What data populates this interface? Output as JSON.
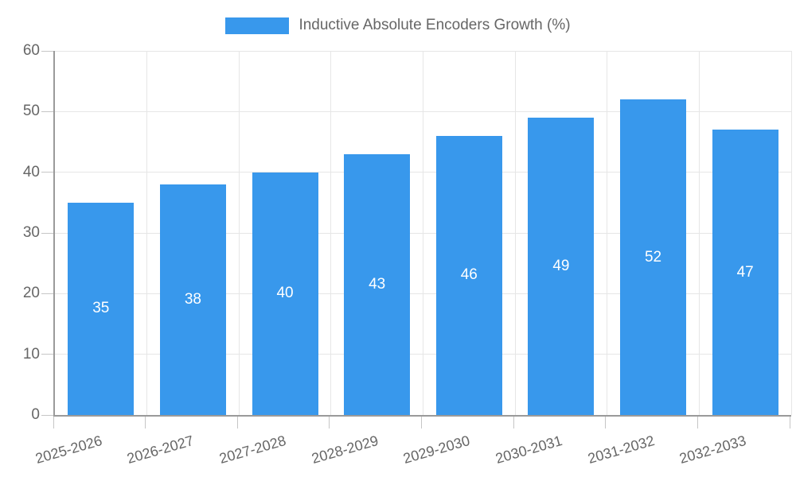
{
  "chart_data": {
    "type": "bar",
    "title": "",
    "legend": "Inductive Absolute Encoders Growth (%)",
    "legend_position": "top-center",
    "categories": [
      "2025-2026",
      "2026-2027",
      "2027-2028",
      "2028-2029",
      "2029-2030",
      "2030-2031",
      "2031-2032",
      "2032-2033"
    ],
    "values": [
      35,
      38,
      40,
      43,
      46,
      49,
      52,
      47
    ],
    "xlabel": "",
    "ylabel": "",
    "ylim": [
      0,
      60
    ],
    "ytick_step": 10,
    "yticks": [
      0,
      10,
      20,
      30,
      40,
      50,
      60
    ],
    "grid": true,
    "value_labels": "centered-inside-bars",
    "colors": {
      "bar": "#3898ec",
      "value_label": "#ffffff",
      "axis_text": "#666666",
      "axis_line": "#9a9a9a",
      "gridline": "#e6e6e6",
      "tick_mark": "#c6c6c6",
      "background": "#ffffff"
    }
  }
}
